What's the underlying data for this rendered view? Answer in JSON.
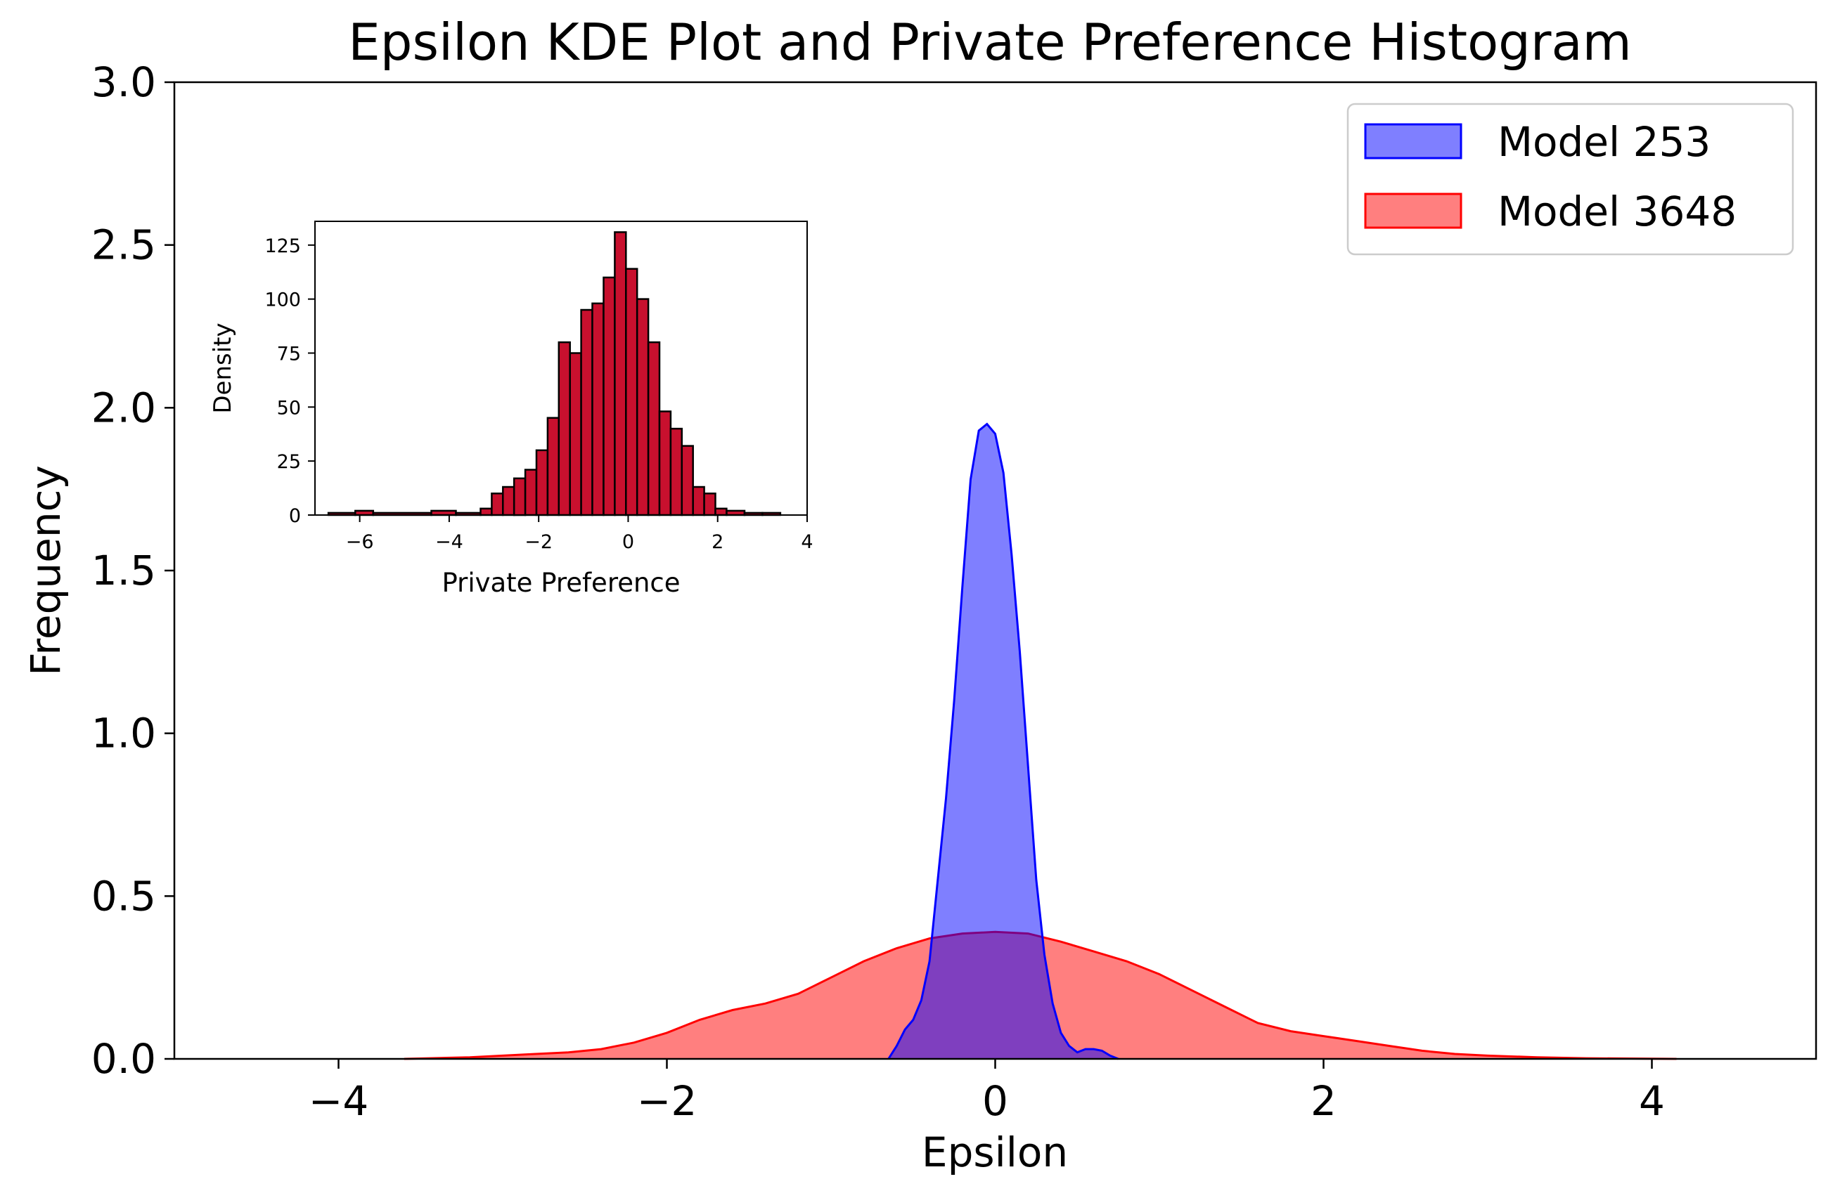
{
  "chart_data": [
    {
      "type": "area",
      "title": "Epsilon KDE Plot and Private Preference Histogram",
      "xlabel": "Epsilon",
      "ylabel": "Frequency",
      "xlim": [
        -5,
        5
      ],
      "ylim": [
        0,
        3
      ],
      "xticks": [
        -4,
        -2,
        0,
        2,
        4
      ],
      "xtick_labels": [
        "−4",
        "−2",
        "0",
        "2",
        "4"
      ],
      "yticks": [
        0,
        0.5,
        1,
        1.5,
        2,
        2.5,
        3
      ],
      "ytick_labels": [
        "0.0",
        "0.5",
        "1.0",
        "1.5",
        "2.0",
        "2.5",
        "3.0"
      ],
      "grid": false,
      "legend_position": "top-right",
      "series": [
        {
          "name": "Model 253",
          "color": "#0000ff",
          "x": [
            -0.65,
            -0.6,
            -0.55,
            -0.5,
            -0.45,
            -0.4,
            -0.35,
            -0.3,
            -0.25,
            -0.2,
            -0.15,
            -0.1,
            -0.05,
            0.0,
            0.05,
            0.1,
            0.15,
            0.2,
            0.25,
            0.3,
            0.35,
            0.4,
            0.45,
            0.5,
            0.55,
            0.6,
            0.65,
            0.7,
            0.75
          ],
          "values": [
            0.0,
            0.04,
            0.09,
            0.12,
            0.18,
            0.3,
            0.55,
            0.8,
            1.1,
            1.45,
            1.78,
            1.93,
            1.95,
            1.92,
            1.8,
            1.55,
            1.25,
            0.9,
            0.55,
            0.32,
            0.17,
            0.08,
            0.04,
            0.02,
            0.03,
            0.03,
            0.025,
            0.01,
            0.0
          ]
        },
        {
          "name": "Model 3648",
          "color": "#ff0000",
          "x": [
            -3.6,
            -3.2,
            -2.8,
            -2.6,
            -2.4,
            -2.2,
            -2.0,
            -1.8,
            -1.6,
            -1.4,
            -1.2,
            -1.0,
            -0.8,
            -0.6,
            -0.4,
            -0.2,
            0.0,
            0.2,
            0.4,
            0.6,
            0.8,
            1.0,
            1.2,
            1.4,
            1.6,
            1.8,
            2.0,
            2.2,
            2.4,
            2.6,
            2.8,
            3.0,
            3.3,
            3.6,
            4.15
          ],
          "values": [
            0.0,
            0.005,
            0.015,
            0.02,
            0.03,
            0.05,
            0.08,
            0.12,
            0.15,
            0.17,
            0.2,
            0.25,
            0.3,
            0.34,
            0.37,
            0.385,
            0.39,
            0.385,
            0.36,
            0.33,
            0.3,
            0.26,
            0.21,
            0.16,
            0.11,
            0.085,
            0.07,
            0.055,
            0.04,
            0.025,
            0.015,
            0.01,
            0.005,
            0.002,
            0.0
          ]
        }
      ]
    },
    {
      "type": "bar",
      "xlabel": "Private Preference",
      "ylabel": "Density",
      "xlim": [
        -7,
        4
      ],
      "ylim": [
        0,
        136
      ],
      "xticks": [
        -6,
        -4,
        -2,
        0,
        2,
        4
      ],
      "xtick_labels": [
        "−6",
        "−4",
        "−2",
        "0",
        "2",
        "4"
      ],
      "yticks": [
        0,
        25,
        50,
        75,
        100,
        125
      ],
      "ytick_labels": [
        "0",
        "25",
        "50",
        "75",
        "100",
        "125"
      ],
      "bar_color": "#c8102e",
      "bins": [
        [
          -6.7,
          -6.1,
          1
        ],
        [
          -6.1,
          -5.7,
          2
        ],
        [
          -5.7,
          -4.4,
          1
        ],
        [
          -4.4,
          -3.85,
          2
        ],
        [
          -3.85,
          -3.3,
          1
        ],
        [
          -3.3,
          -3.05,
          3
        ],
        [
          -3.05,
          -2.8,
          10
        ],
        [
          -2.8,
          -2.55,
          13
        ],
        [
          -2.55,
          -2.3,
          17
        ],
        [
          -2.3,
          -2.05,
          21
        ],
        [
          -2.05,
          -1.8,
          30
        ],
        [
          -1.8,
          -1.55,
          45
        ],
        [
          -1.55,
          -1.3,
          80
        ],
        [
          -1.3,
          -1.05,
          75
        ],
        [
          -1.05,
          -0.8,
          95
        ],
        [
          -0.8,
          -0.55,
          98
        ],
        [
          -0.55,
          -0.3,
          110
        ],
        [
          -0.3,
          -0.05,
          131
        ],
        [
          -0.05,
          0.2,
          114
        ],
        [
          0.2,
          0.45,
          100
        ],
        [
          0.45,
          0.7,
          80
        ],
        [
          0.7,
          0.95,
          48
        ],
        [
          0.95,
          1.2,
          40
        ],
        [
          1.2,
          1.45,
          32
        ],
        [
          1.45,
          1.7,
          13
        ],
        [
          1.7,
          1.95,
          10
        ],
        [
          1.95,
          2.2,
          3
        ],
        [
          2.2,
          2.6,
          2
        ],
        [
          2.6,
          3.0,
          1
        ],
        [
          3.0,
          3.4,
          1
        ]
      ]
    }
  ]
}
